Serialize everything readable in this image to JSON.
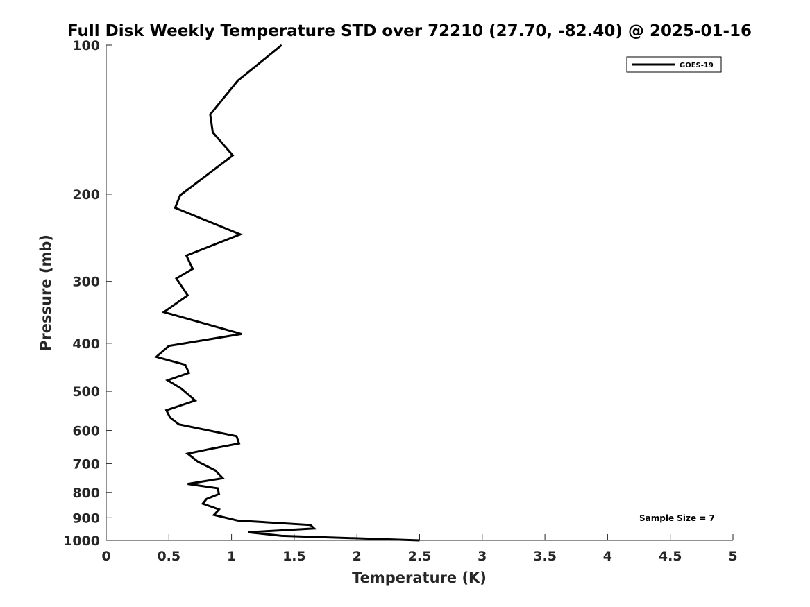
{
  "chart_data": {
    "type": "line",
    "title": "Full Disk Weekly Temperature STD over 72210 (27.70, -82.40) @ 2025-01-16",
    "xlabel": "Temperature (K)",
    "ylabel": "Pressure (mb)",
    "xlim": [
      0,
      5
    ],
    "ylim": [
      100,
      1000
    ],
    "yscale": "log",
    "y_reversed": true,
    "grid": false,
    "legend_position": "top-right",
    "x_ticks": [
      0,
      0.5,
      1,
      1.5,
      2,
      2.5,
      3,
      3.5,
      4,
      4.5,
      5
    ],
    "x_tick_labels": [
      "0",
      "0.5",
      "1",
      "1.5",
      "2",
      "2.5",
      "3",
      "3.5",
      "4",
      "4.5",
      "5"
    ],
    "y_ticks": [
      100,
      200,
      300,
      400,
      500,
      600,
      700,
      800,
      900,
      1000
    ],
    "y_tick_labels": [
      "100",
      "200",
      "300",
      "400",
      "500",
      "600",
      "700",
      "800",
      "900",
      "1000"
    ],
    "annotation": "Sample Size = 7",
    "series": [
      {
        "name": "GOES-19",
        "color": "#000000",
        "x": [
          1.4,
          1.05,
          0.83,
          0.85,
          1.01,
          0.59,
          0.55,
          1.07,
          0.64,
          0.69,
          0.56,
          0.65,
          0.46,
          1.08,
          0.5,
          0.4,
          0.63,
          0.66,
          0.49,
          0.6,
          0.71,
          0.48,
          0.51,
          0.58,
          1.04,
          1.06,
          0.84,
          0.65,
          0.73,
          0.87,
          0.93,
          0.65,
          0.89,
          0.9,
          0.8,
          0.77,
          0.9,
          0.86,
          1.05,
          1.63,
          1.66,
          1.13,
          1.4,
          2.5
        ],
        "y": [
          100,
          118,
          138,
          150,
          167,
          201,
          213,
          241,
          266,
          283,
          296,
          320,
          346,
          383,
          405,
          426,
          442,
          459,
          475,
          494,
          522,
          546,
          565,
          583,
          616,
          637,
          653,
          668,
          693,
          722,
          749,
          769,
          785,
          806,
          825,
          843,
          866,
          888,
          912,
          931,
          946,
          963,
          979,
          1000
        ]
      }
    ]
  }
}
